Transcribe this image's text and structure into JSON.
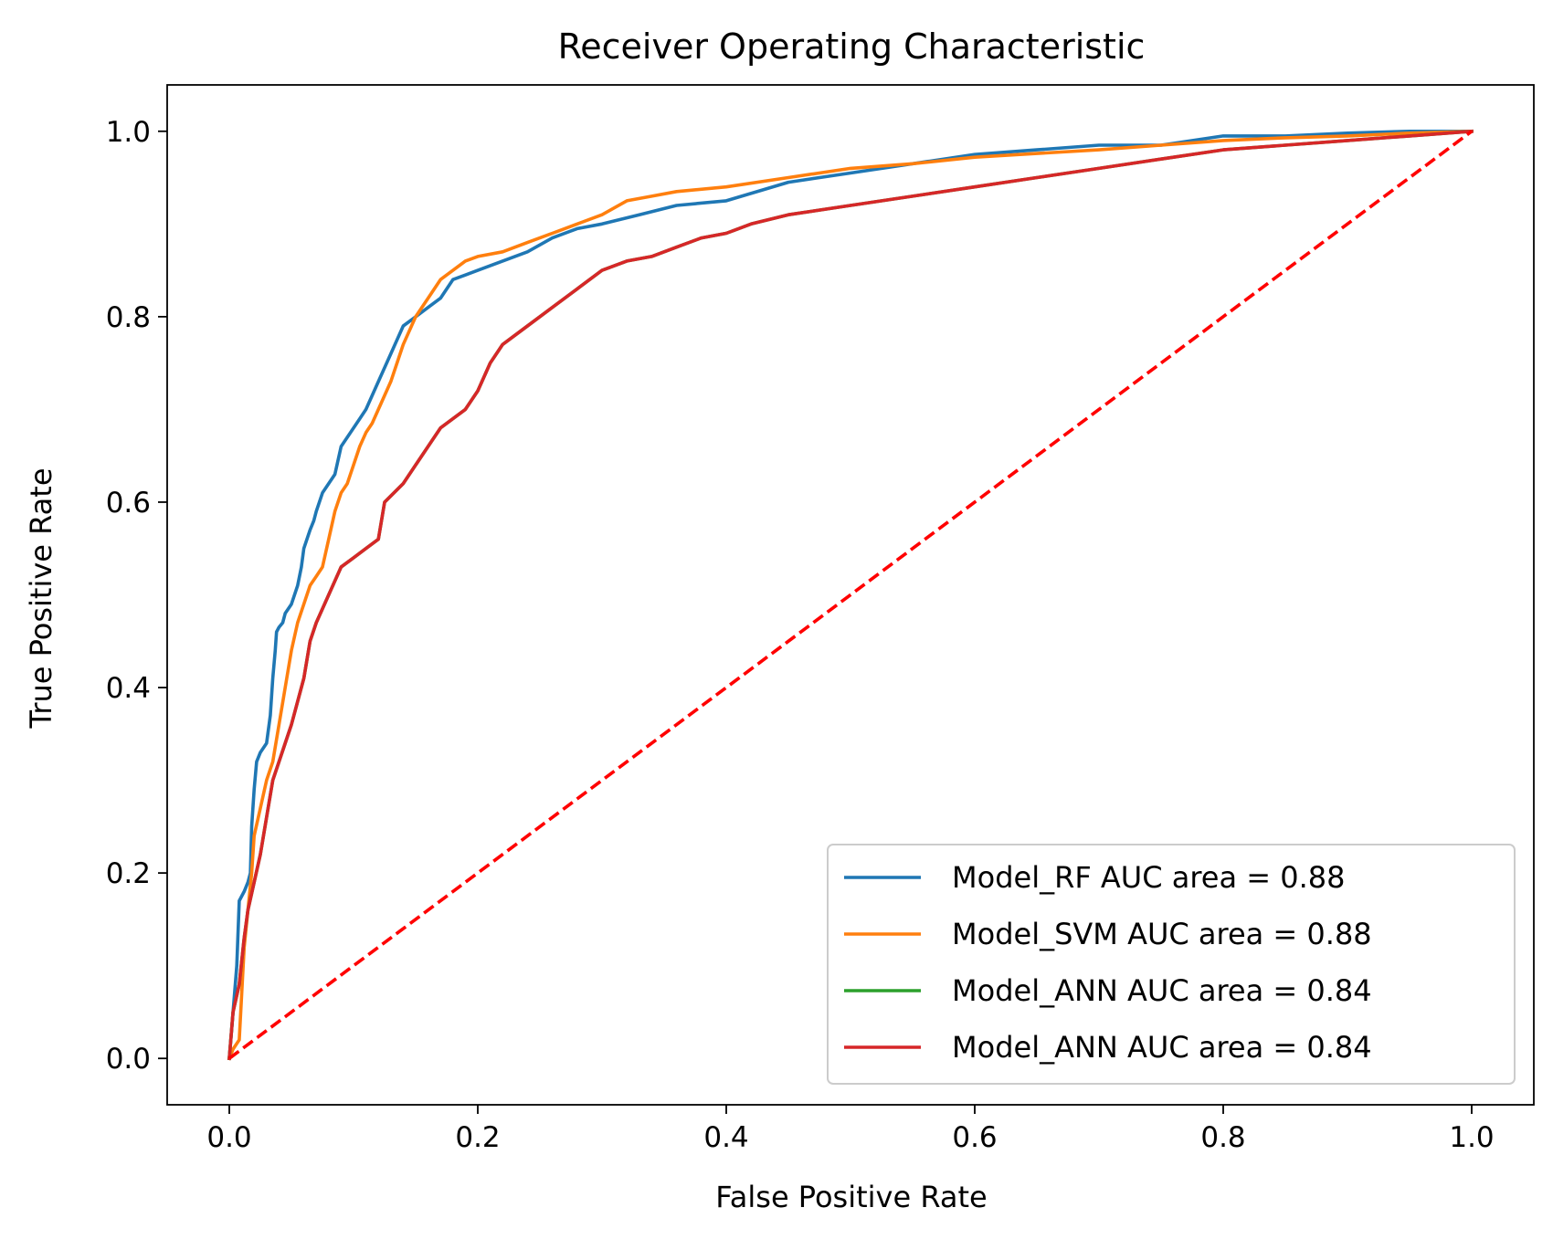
{
  "chart_data": {
    "type": "line",
    "title": "Receiver Operating Characteristic",
    "xlabel": "False Positive Rate",
    "ylabel": "True Positive Rate",
    "xlim": [
      -0.05,
      1.05
    ],
    "ylim": [
      -0.05,
      1.05
    ],
    "xticks": [
      0.0,
      0.2,
      0.4,
      0.6,
      0.8,
      1.0
    ],
    "yticks": [
      0.0,
      0.2,
      0.4,
      0.6,
      0.8,
      1.0
    ],
    "xtick_labels": [
      "0.0",
      "0.2",
      "0.4",
      "0.6",
      "0.8",
      "1.0"
    ],
    "ytick_labels": [
      "0.0",
      "0.2",
      "0.4",
      "0.6",
      "0.8",
      "1.0"
    ],
    "grid": false,
    "legend_position": "lower-right",
    "series": [
      {
        "name": "Model_RF AUC area = 0.88",
        "color": "#1f77b4",
        "x": [
          0,
          0.003,
          0.006,
          0.008,
          0.012,
          0.015,
          0.017,
          0.018,
          0.02,
          0.022,
          0.025,
          0.03,
          0.033,
          0.035,
          0.037,
          0.038,
          0.04,
          0.043,
          0.045,
          0.05,
          0.055,
          0.058,
          0.06,
          0.065,
          0.068,
          0.07,
          0.075,
          0.08,
          0.085,
          0.09,
          0.095,
          0.1,
          0.105,
          0.11,
          0.12,
          0.13,
          0.14,
          0.15,
          0.16,
          0.17,
          0.18,
          0.19,
          0.2,
          0.22,
          0.24,
          0.26,
          0.28,
          0.3,
          0.33,
          0.36,
          0.4,
          0.45,
          0.5,
          0.55,
          0.6,
          0.65,
          0.7,
          0.75,
          0.8,
          0.85,
          0.9,
          0.95,
          1.0
        ],
        "y": [
          0,
          0.05,
          0.1,
          0.17,
          0.18,
          0.19,
          0.2,
          0.25,
          0.29,
          0.32,
          0.33,
          0.34,
          0.37,
          0.41,
          0.44,
          0.46,
          0.465,
          0.47,
          0.48,
          0.49,
          0.51,
          0.53,
          0.55,
          0.57,
          0.58,
          0.59,
          0.61,
          0.62,
          0.63,
          0.66,
          0.67,
          0.68,
          0.69,
          0.7,
          0.73,
          0.76,
          0.79,
          0.8,
          0.81,
          0.82,
          0.84,
          0.845,
          0.85,
          0.86,
          0.87,
          0.885,
          0.895,
          0.9,
          0.91,
          0.92,
          0.925,
          0.945,
          0.955,
          0.965,
          0.975,
          0.98,
          0.985,
          0.985,
          0.995,
          0.995,
          0.998,
          1.0,
          1.0
        ]
      },
      {
        "name": "Model_SVM AUC area = 0.88",
        "color": "#ff7f0e",
        "x": [
          0,
          0.003,
          0.008,
          0.01,
          0.012,
          0.015,
          0.018,
          0.02,
          0.025,
          0.03,
          0.035,
          0.04,
          0.045,
          0.05,
          0.055,
          0.06,
          0.065,
          0.07,
          0.075,
          0.08,
          0.085,
          0.09,
          0.095,
          0.1,
          0.105,
          0.11,
          0.115,
          0.12,
          0.13,
          0.14,
          0.15,
          0.16,
          0.17,
          0.18,
          0.19,
          0.2,
          0.22,
          0.24,
          0.26,
          0.28,
          0.3,
          0.32,
          0.34,
          0.36,
          0.4,
          0.45,
          0.5,
          0.55,
          0.6,
          0.65,
          0.7,
          0.75,
          0.8,
          0.85,
          0.9,
          0.95,
          1.0
        ],
        "y": [
          0,
          0.01,
          0.02,
          0.07,
          0.12,
          0.16,
          0.2,
          0.24,
          0.27,
          0.3,
          0.32,
          0.36,
          0.4,
          0.44,
          0.47,
          0.49,
          0.51,
          0.52,
          0.53,
          0.56,
          0.59,
          0.61,
          0.62,
          0.64,
          0.66,
          0.675,
          0.685,
          0.7,
          0.73,
          0.77,
          0.8,
          0.82,
          0.84,
          0.85,
          0.86,
          0.865,
          0.87,
          0.88,
          0.89,
          0.9,
          0.91,
          0.925,
          0.93,
          0.935,
          0.94,
          0.95,
          0.96,
          0.965,
          0.972,
          0.976,
          0.98,
          0.985,
          0.99,
          0.993,
          0.995,
          0.998,
          1.0
        ]
      },
      {
        "name": "Model_ANN AUC area = 0.84",
        "color": "#2ca02c",
        "x": [
          0,
          0.003,
          0.008,
          0.012,
          0.015,
          0.02,
          0.025,
          0.03,
          0.035,
          0.04,
          0.045,
          0.05,
          0.06,
          0.065,
          0.07,
          0.08,
          0.09,
          0.1,
          0.11,
          0.12,
          0.125,
          0.14,
          0.15,
          0.16,
          0.17,
          0.18,
          0.19,
          0.2,
          0.21,
          0.22,
          0.24,
          0.26,
          0.28,
          0.3,
          0.32,
          0.34,
          0.36,
          0.38,
          0.4,
          0.42,
          0.45,
          0.5,
          0.55,
          0.6,
          0.65,
          0.7,
          0.75,
          0.8,
          0.85,
          0.9,
          0.95,
          1.0
        ],
        "y": [
          0,
          0.05,
          0.08,
          0.13,
          0.16,
          0.19,
          0.22,
          0.26,
          0.3,
          0.32,
          0.34,
          0.36,
          0.41,
          0.45,
          0.47,
          0.5,
          0.53,
          0.54,
          0.55,
          0.56,
          0.6,
          0.62,
          0.64,
          0.66,
          0.68,
          0.69,
          0.7,
          0.72,
          0.75,
          0.77,
          0.79,
          0.81,
          0.83,
          0.85,
          0.86,
          0.865,
          0.875,
          0.885,
          0.89,
          0.9,
          0.91,
          0.92,
          0.93,
          0.94,
          0.95,
          0.96,
          0.97,
          0.98,
          0.985,
          0.99,
          0.995,
          1.0
        ]
      },
      {
        "name": "Model_ANN AUC area = 0.84",
        "color": "#d62728",
        "x": [
          0,
          0.003,
          0.008,
          0.012,
          0.015,
          0.02,
          0.025,
          0.03,
          0.035,
          0.04,
          0.045,
          0.05,
          0.06,
          0.065,
          0.07,
          0.08,
          0.09,
          0.1,
          0.11,
          0.12,
          0.125,
          0.14,
          0.15,
          0.16,
          0.17,
          0.18,
          0.19,
          0.2,
          0.21,
          0.22,
          0.24,
          0.26,
          0.28,
          0.3,
          0.32,
          0.34,
          0.36,
          0.38,
          0.4,
          0.42,
          0.45,
          0.5,
          0.55,
          0.6,
          0.65,
          0.7,
          0.75,
          0.8,
          0.85,
          0.9,
          0.95,
          1.0
        ],
        "y": [
          0,
          0.05,
          0.08,
          0.13,
          0.16,
          0.19,
          0.22,
          0.26,
          0.3,
          0.32,
          0.34,
          0.36,
          0.41,
          0.45,
          0.47,
          0.5,
          0.53,
          0.54,
          0.55,
          0.56,
          0.6,
          0.62,
          0.64,
          0.66,
          0.68,
          0.69,
          0.7,
          0.72,
          0.75,
          0.77,
          0.79,
          0.81,
          0.83,
          0.85,
          0.86,
          0.865,
          0.875,
          0.885,
          0.89,
          0.9,
          0.91,
          0.92,
          0.93,
          0.94,
          0.95,
          0.96,
          0.97,
          0.98,
          0.985,
          0.99,
          0.995,
          1.0
        ]
      }
    ],
    "reference_line": {
      "color": "#ff0000",
      "style": "dashed",
      "x": [
        0,
        1
      ],
      "y": [
        0,
        1
      ]
    }
  }
}
